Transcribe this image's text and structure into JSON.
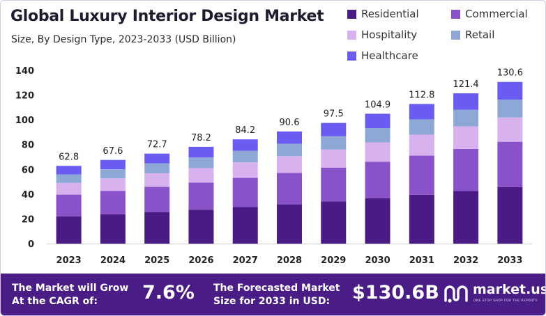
{
  "title": "Global Luxury Interior Design Market",
  "subtitle": "Size, By Design Type, 2023-2033 (USD Billion)",
  "colors": {
    "residential": "#4a1a85",
    "commercial": "#8a52c9",
    "hospitality": "#d7b2ef",
    "retail": "#8ea8d6",
    "healthcare": "#6a5bf2",
    "footer": "#4a1c86"
  },
  "chart_data": {
    "type": "bar",
    "stacked": true,
    "title": "Global Luxury Interior Design Market",
    "subtitle": "Size, By Design Type, 2023-2033 (USD Billion)",
    "categories": [
      "2023",
      "2024",
      "2025",
      "2026",
      "2027",
      "2028",
      "2029",
      "2030",
      "2031",
      "2032",
      "2033"
    ],
    "totals": [
      62.8,
      67.6,
      72.7,
      78.2,
      84.2,
      90.6,
      97.5,
      104.9,
      112.8,
      121.4,
      130.6
    ],
    "total_labels": [
      "62.8",
      "67.6",
      "72.7",
      "78.2",
      "84.2",
      "90.6",
      "97.5",
      "104.9",
      "112.8",
      "121.4",
      "130.6"
    ],
    "series": [
      {
        "name": "Residential",
        "values": [
          22.0,
          23.7,
          25.5,
          27.4,
          29.5,
          31.7,
          34.1,
          36.7,
          39.5,
          42.5,
          45.7
        ]
      },
      {
        "name": "Commercial",
        "values": [
          17.6,
          18.9,
          20.4,
          21.9,
          23.6,
          25.4,
          27.3,
          29.4,
          31.6,
          34.0,
          36.6
        ]
      },
      {
        "name": "Hospitality",
        "values": [
          9.4,
          10.1,
          10.9,
          11.7,
          12.6,
          13.6,
          14.6,
          15.7,
          16.9,
          18.2,
          19.6
        ]
      },
      {
        "name": "Retail",
        "values": [
          6.9,
          7.4,
          8.0,
          8.6,
          9.3,
          10.0,
          10.7,
          11.5,
          12.4,
          13.4,
          14.4
        ]
      },
      {
        "name": "Healthcare",
        "values": [
          6.9,
          7.5,
          7.9,
          8.6,
          9.2,
          9.9,
          10.8,
          11.6,
          12.4,
          13.3,
          14.3
        ]
      }
    ],
    "ylim": [
      0,
      140
    ],
    "yticks": [
      0,
      20,
      40,
      60,
      80,
      100,
      120,
      140
    ],
    "grid": false,
    "legend": "top-right"
  },
  "legend": {
    "items": [
      {
        "label": "Residential",
        "color": "#4a1a85"
      },
      {
        "label": "Commercial",
        "color": "#8a52c9"
      },
      {
        "label": "Hospitality",
        "color": "#d7b2ef"
      },
      {
        "label": "Retail",
        "color": "#8ea8d6"
      },
      {
        "label": "Healthcare",
        "color": "#6a5bf2"
      }
    ]
  },
  "footer": {
    "cagr_label_line1": "The Market will Grow",
    "cagr_label_line2": "At the CAGR of:",
    "cagr_value": "7.6%",
    "forecast_label_line1": "The Forecasted Market",
    "forecast_label_line2": "Size for 2033 in USD:",
    "forecast_value": "$130.6B",
    "brand_name": "market.us",
    "brand_tagline": "ONE STOP SHOP FOR THE REPORTS",
    "brand_icon": "market-us-logo-icon"
  }
}
